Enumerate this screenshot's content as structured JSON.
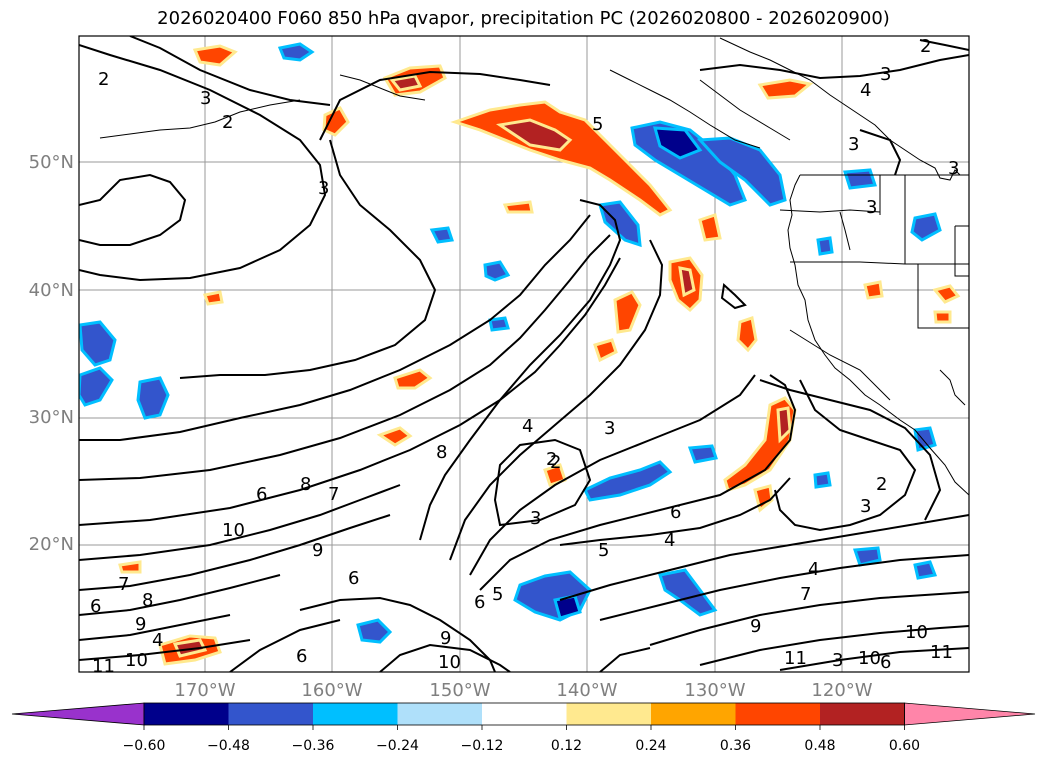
{
  "title": "2026020400 F060 850 hPa qvapor, precipitation PC (2026020800 - 2026020900)",
  "lat_labels": [
    "50°N",
    "40°N",
    "30°N",
    "20°N"
  ],
  "lon_labels": [
    "170°W",
    "160°W",
    "150°W",
    "140°W",
    "130°W",
    "120°W"
  ],
  "colorbar": {
    "colors": [
      "#9932cc",
      "#00008b",
      "#3355cc",
      "#00bfff",
      "#afe0fa",
      "#ffffff",
      "#ffe98f",
      "#ffa500",
      "#ff4500",
      "#b22222",
      "#ff85a9"
    ],
    "tick_labels": [
      "−0.60",
      "−0.48",
      "−0.36",
      "−0.24",
      "−0.12",
      "0.12",
      "0.24",
      "0.36",
      "0.48",
      "0.60"
    ]
  },
  "contour_labels": [
    "2",
    "3",
    "3",
    "5",
    "3",
    "4",
    "3",
    "2",
    "3",
    "2",
    "4",
    "2",
    "3",
    "4",
    "6",
    "8",
    "7",
    "9",
    "10",
    "6",
    "7",
    "8",
    "9",
    "10",
    "11",
    "6",
    "3",
    "6",
    "5",
    "4",
    "5",
    "6",
    "8",
    "9",
    "10",
    "11",
    "9",
    "10",
    "11",
    "7",
    "6",
    "4",
    "2",
    "3",
    "2",
    "3",
    "3",
    "10",
    "6"
  ]
}
